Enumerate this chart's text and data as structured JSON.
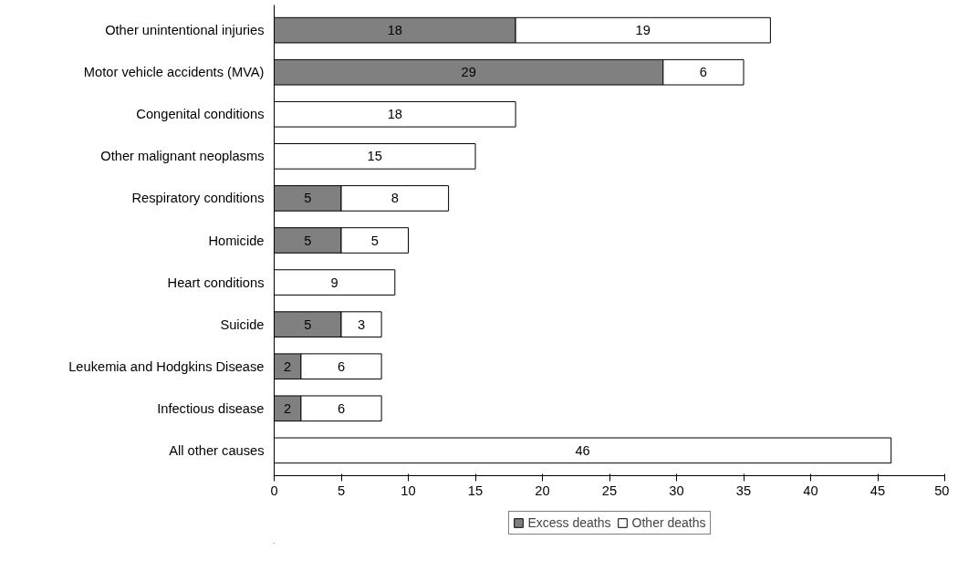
{
  "chart_data": {
    "type": "bar",
    "orientation": "horizontal",
    "stacked": true,
    "data_labels": true,
    "legend": "bottom",
    "grid": false,
    "categories": [
      "Other unintentional injuries",
      "Motor vehicle accidents (MVA)",
      "Congenital conditions",
      "Other malignant neoplasms",
      "Respiratory conditions",
      "Homicide",
      "Heart conditions",
      "Suicide",
      "Leukemia and Hodgkins Disease",
      "Infectious disease",
      "All other causes"
    ],
    "series": [
      {
        "name": "Excess deaths",
        "color": "#808080",
        "values": [
          18,
          29,
          null,
          null,
          5,
          5,
          null,
          5,
          2,
          2,
          null
        ]
      },
      {
        "name": "Other deaths",
        "color": "#ffffff",
        "values": [
          19,
          6,
          18,
          15,
          8,
          5,
          9,
          3,
          6,
          6,
          46
        ]
      }
    ],
    "xlim": [
      0,
      50
    ],
    "xticks": [
      0,
      5,
      10,
      15,
      20,
      25,
      30,
      35,
      40,
      45,
      50
    ]
  }
}
